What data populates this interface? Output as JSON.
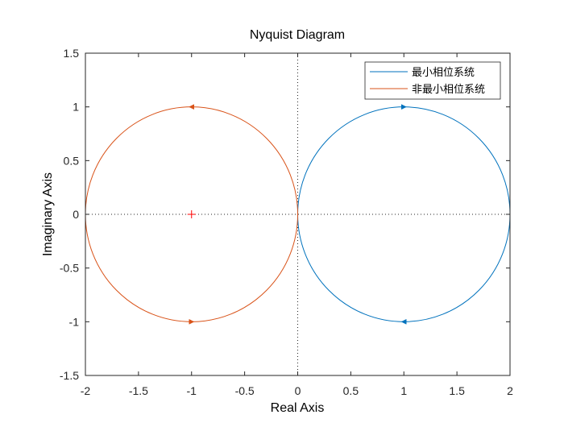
{
  "chart_data": {
    "type": "line",
    "title": "Nyquist Diagram",
    "xlabel": "Real Axis",
    "ylabel": "Imaginary Axis",
    "xlim": [
      -2,
      2
    ],
    "ylim": [
      -1.5,
      1.5
    ],
    "xticks": [
      -2,
      -1.5,
      -1,
      -0.5,
      0,
      0.5,
      1,
      1.5,
      2
    ],
    "yticks": [
      -1.5,
      -1,
      -0.5,
      0,
      0.5,
      1,
      1.5
    ],
    "xtick_labels": [
      "-2",
      "-1.5",
      "-1",
      "-0.5",
      "0",
      "0.5",
      "1",
      "1.5",
      "2"
    ],
    "ytick_labels": [
      "-1.5",
      "-1",
      "-0.5",
      "0",
      "0.5",
      "1",
      "1.5"
    ],
    "grid": false,
    "legend_position": "top-right",
    "series": [
      {
        "name": "最小相位系统",
        "color": "#0072BD",
        "shape": "circle",
        "center": [
          1,
          0
        ],
        "radius": 1,
        "arrows": [
          {
            "x": 1,
            "y": 1,
            "direction": "right"
          },
          {
            "x": 1,
            "y": -1,
            "direction": "left"
          }
        ]
      },
      {
        "name": "非最小相位系统",
        "color": "#D95319",
        "shape": "circle",
        "center": [
          -1,
          0
        ],
        "radius": 1,
        "arrows": [
          {
            "x": -1,
            "y": 1,
            "direction": "left"
          },
          {
            "x": -1,
            "y": -1,
            "direction": "right"
          }
        ]
      }
    ],
    "critical_point": {
      "x": -1,
      "y": 0,
      "marker": "+",
      "color": "#FF0000"
    },
    "reference_lines": {
      "x": 0,
      "y": 0,
      "style": "dotted"
    }
  }
}
